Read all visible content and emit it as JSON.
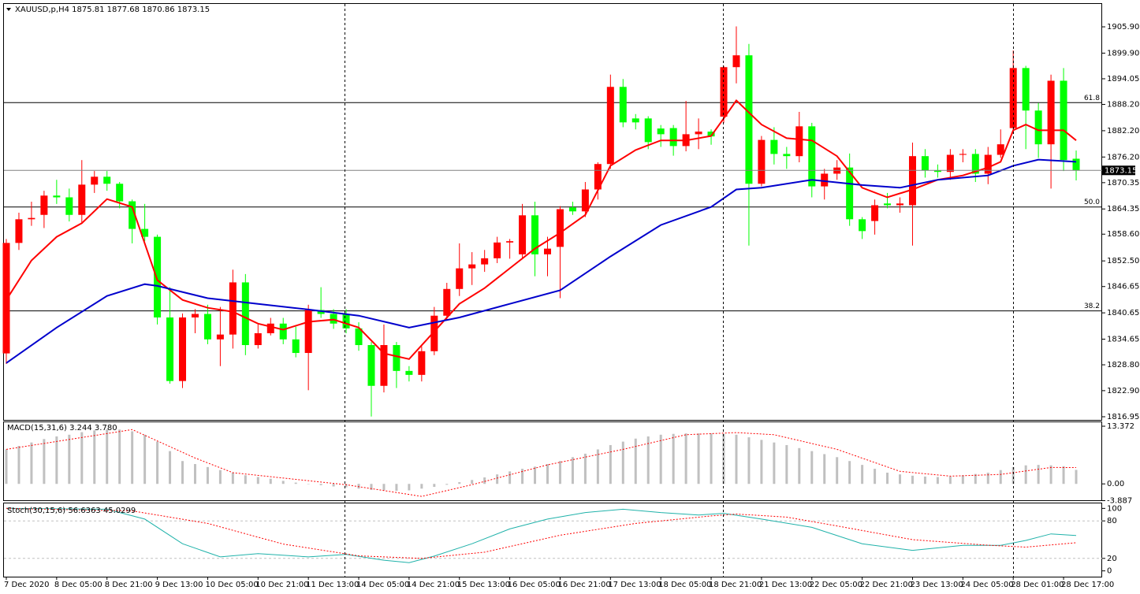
{
  "chart_data": [
    {
      "type": "candlestick",
      "title": "XAUUSD,p,H4  1875.81 1877.68 1870.86 1873.15",
      "open": [
        1831.4,
        1856.6,
        1862.0,
        1863.0,
        1867.4,
        1867.0,
        1863.0,
        1869.9,
        1871.7,
        1870.1,
        1866.1,
        1859.8,
        1858.0,
        1839.6,
        1825.1,
        1839.6,
        1840.4,
        1834.6,
        1835.7,
        1847.6,
        1833.3,
        1836.0,
        1838.2,
        1834.6,
        1831.5,
        1841.3,
        1840.4,
        1840.4,
        1837.1,
        1833.3,
        1824.0,
        1833.3,
        1827.4,
        1826.5,
        1831.9,
        1840.0,
        1846.1,
        1850.8,
        1851.7,
        1853.1,
        1856.7,
        1854.0,
        1862.9,
        1854.0,
        1855.7,
        1864.7,
        1863.8,
        1868.8,
        1874.6,
        1892.2,
        1885.0,
        1885.0,
        1882.7,
        1882.8,
        1878.7,
        1881.4,
        1882.0,
        1885.4,
        1896.7,
        1899.4,
        1870.1,
        1880.1,
        1876.9,
        1876.4,
        1883.2,
        1869.5,
        1872.4,
        1873.8,
        1862.0,
        1861.6,
        1865.6,
        1865.2,
        1865.2,
        1876.4,
        1873.1,
        1872.8,
        1876.7,
        1876.9,
        1872.4,
        1876.7,
        1882.8,
        1896.5,
        1886.8,
        1879.1,
        1893.6,
        1875.81
      ],
      "high": [
        1857.5,
        1863.5,
        1866.0,
        1868.5,
        1871.0,
        1869.0,
        1875.5,
        1873.0,
        1873.0,
        1870.5,
        1866.5,
        1865.5,
        1858.5,
        1846.5,
        1840.5,
        1841.5,
        1842.5,
        1842.0,
        1850.5,
        1849.5,
        1838.0,
        1839.5,
        1839.5,
        1837.5,
        1842.5,
        1846.5,
        1841.5,
        1841.5,
        1838.5,
        1834.0,
        1838.0,
        1834.0,
        1828.5,
        1833.0,
        1842.0,
        1847.5,
        1856.5,
        1854.5,
        1855.0,
        1858.0,
        1857.5,
        1865.5,
        1866.0,
        1858.0,
        1865.0,
        1866.0,
        1870.5,
        1875.0,
        1895.0,
        1894.0,
        1886.0,
        1885.5,
        1883.5,
        1883.5,
        1889.0,
        1885.0,
        1882.5,
        1897.0,
        1906.0,
        1902.0,
        1881.0,
        1883.0,
        1878.5,
        1886.5,
        1884.0,
        1873.5,
        1875.5,
        1877.0,
        1862.5,
        1866.5,
        1868.0,
        1867.0,
        1879.5,
        1878.0,
        1874.5,
        1878.0,
        1878.0,
        1878.0,
        1878.5,
        1882.5,
        1900.5,
        1897.0,
        1888.5,
        1895.0,
        1896.5,
        1877.68
      ],
      "low": [
        1829.0,
        1855.0,
        1860.5,
        1860.0,
        1865.5,
        1861.5,
        1861.0,
        1868.0,
        1868.5,
        1864.5,
        1856.5,
        1857.0,
        1838.0,
        1824.5,
        1823.5,
        1836.0,
        1833.5,
        1828.5,
        1832.5,
        1831.0,
        1832.5,
        1835.5,
        1833.5,
        1830.5,
        1823.0,
        1839.5,
        1837.0,
        1836.0,
        1832.0,
        1817.0,
        1822.5,
        1823.5,
        1825.0,
        1825.0,
        1831.0,
        1839.0,
        1844.5,
        1847.0,
        1850.0,
        1852.0,
        1853.0,
        1853.0,
        1849.0,
        1849.0,
        1844.0,
        1863.0,
        1862.5,
        1866.5,
        1873.5,
        1883.0,
        1882.5,
        1878.0,
        1878.5,
        1876.5,
        1877.5,
        1878.0,
        1879.0,
        1884.0,
        1893.0,
        1856.0,
        1869.5,
        1874.5,
        1873.5,
        1875.0,
        1867.0,
        1866.5,
        1871.0,
        1860.5,
        1857.5,
        1858.5,
        1864.5,
        1863.5,
        1856.0,
        1871.5,
        1871.5,
        1871.0,
        1875.0,
        1870.5,
        1870.0,
        1876.0,
        1881.5,
        1878.0,
        1876.0,
        1869.0,
        1873.0,
        1870.86
      ],
      "close": [
        1856.6,
        1862.0,
        1862.3,
        1867.4,
        1867.0,
        1863.0,
        1869.9,
        1871.7,
        1870.1,
        1866.1,
        1859.8,
        1858.0,
        1839.6,
        1825.1,
        1839.6,
        1840.4,
        1834.6,
        1835.7,
        1847.6,
        1833.3,
        1836.0,
        1838.2,
        1834.6,
        1831.5,
        1841.3,
        1840.4,
        1838.2,
        1837.1,
        1833.3,
        1824.0,
        1833.3,
        1827.4,
        1826.5,
        1831.9,
        1840.0,
        1846.1,
        1850.8,
        1851.7,
        1853.1,
        1856.7,
        1857.0,
        1862.9,
        1854.0,
        1855.3,
        1864.3,
        1863.8,
        1868.8,
        1874.6,
        1892.2,
        1884.1,
        1884.1,
        1879.6,
        1881.4,
        1878.7,
        1881.4,
        1882.0,
        1880.9,
        1896.7,
        1899.4,
        1870.1,
        1880.1,
        1876.9,
        1876.4,
        1883.2,
        1869.5,
        1872.4,
        1873.8,
        1862.0,
        1859.3,
        1865.2,
        1865.2,
        1865.6,
        1876.4,
        1873.1,
        1872.8,
        1876.7,
        1876.9,
        1872.4,
        1876.7,
        1879.1,
        1896.5,
        1886.8,
        1879.1,
        1893.6,
        1875.5,
        1873.15
      ],
      "up_color": "#ff0000",
      "down_color": "#00ff00",
      "lines": [
        {
          "color": "#ff0000",
          "x": [
            0,
            2,
            4,
            6,
            8,
            10,
            12,
            14,
            16,
            18,
            20,
            22,
            24,
            26,
            28,
            30,
            32,
            34,
            36,
            38,
            40,
            42,
            44,
            46,
            48,
            50,
            52,
            54,
            56,
            57,
            58,
            60,
            62,
            64,
            66,
            68,
            70,
            72,
            74,
            76,
            78,
            79,
            80,
            81,
            82,
            84,
            85
          ],
          "values": [
            1843.6,
            1852.6,
            1858.0,
            1861.1,
            1866.6,
            1864.8,
            1848.1,
            1843.6,
            1841.8,
            1840.9,
            1838.2,
            1836.8,
            1838.6,
            1839.1,
            1837.3,
            1831.4,
            1830.1,
            1836.4,
            1842.7,
            1846.3,
            1850.8,
            1855.3,
            1858.9,
            1863.0,
            1874.2,
            1877.8,
            1880.0,
            1880.0,
            1881.0,
            1885.0,
            1889.1,
            1883.6,
            1880.5,
            1880.0,
            1876.4,
            1869.2,
            1867.0,
            1868.8,
            1871.0,
            1872.0,
            1873.8,
            1875.1,
            1882.3,
            1883.6,
            1882.3,
            1882.3,
            1880.0
          ]
        },
        {
          "color": "#0000cc",
          "x": [
            0,
            4,
            8,
            11,
            12,
            16,
            20,
            24,
            28,
            32,
            36,
            40,
            44,
            48,
            52,
            56,
            58,
            60,
            64,
            68,
            71,
            74,
            78,
            80,
            82,
            85
          ],
          "values": [
            1829.2,
            1837.3,
            1844.5,
            1847.2,
            1846.8,
            1844.0,
            1842.7,
            1841.4,
            1840.0,
            1837.3,
            1839.6,
            1842.7,
            1845.8,
            1853.5,
            1860.7,
            1864.8,
            1868.8,
            1869.2,
            1871.0,
            1869.8,
            1869.2,
            1871.0,
            1872.0,
            1874.2,
            1875.6,
            1875.1
          ]
        }
      ],
      "levels": [
        {
          "value": 1888.6,
          "label": "61.8"
        },
        {
          "value": 1864.8,
          "label": "50.0"
        },
        {
          "value": 1841.1,
          "label": "38.2"
        }
      ],
      "last": 1873.15,
      "ylim": [
        1816.23,
        1911.12
      ],
      "yticks": [
        {
          "value": 1905.9,
          "label": "1905.90"
        },
        {
          "value": 1899.9,
          "label": "1899.90"
        },
        1894.05,
        {
          "value": 1888.2,
          "label": "1888.20"
        },
        {
          "value": 1882.2,
          "label": "1882.20"
        },
        {
          "value": 1876.2,
          "label": "1876.20"
        },
        1870.35,
        1864.35,
        {
          "value": 1858.6,
          "label": "1858.60"
        },
        {
          "value": 1852.5,
          "label": "1852.50"
        },
        1846.65,
        1840.65,
        1834.65,
        {
          "value": 1828.8,
          "label": "1828.80"
        },
        {
          "value": 1822.9,
          "label": "1822.90"
        },
        1816.95
      ],
      "xticks": [
        {
          "value": 0,
          "label": "7 Dec 2020"
        },
        {
          "value": 4,
          "label": "8 Dec 05:00"
        },
        {
          "value": 8,
          "label": "8 Dec 21:00"
        },
        {
          "value": 12,
          "label": "9 Dec 13:00"
        },
        {
          "value": 16,
          "label": "10 Dec 05:00"
        },
        {
          "value": 20,
          "label": "10 Dec 21:00"
        },
        {
          "value": 24,
          "label": "11 Dec 13:00"
        },
        {
          "value": 28,
          "label": "14 Dec 05:00"
        },
        {
          "value": 32,
          "label": "14 Dec 21:00"
        },
        {
          "value": 36,
          "label": "15 Dec 13:00"
        },
        {
          "value": 40,
          "label": "16 Dec 05:00"
        },
        {
          "value": 44,
          "label": "16 Dec 21:00"
        },
        {
          "value": 48,
          "label": "17 Dec 13:00"
        },
        {
          "value": 52,
          "label": "18 Dec 05:00"
        },
        {
          "value": 56,
          "label": "18 Dec 21:00"
        },
        {
          "value": 60,
          "label": "21 Dec 13:00"
        },
        {
          "value": 64,
          "label": "22 Dec 05:00"
        },
        {
          "value": 68,
          "label": "22 Dec 21:00"
        },
        {
          "value": 72,
          "label": "23 Dec 13:00"
        },
        {
          "value": 76,
          "label": "24 Dec 05:00"
        },
        {
          "value": 80,
          "label": "28 Dec 01:00"
        },
        {
          "value": 84,
          "label": "28 Dec 17:00"
        }
      ]
    },
    {
      "type": "macd",
      "title": "MACD(15,31,6) 3.244 3.780",
      "values": [
        8.0,
        8.8,
        9.6,
        10.4,
        11.0,
        11.4,
        12.0,
        12.4,
        12.6,
        12.6,
        12.2,
        11.4,
        9.8,
        7.6,
        5.3,
        4.6,
        3.9,
        3.2,
        2.6,
        2.0,
        1.6,
        1.2,
        0.7,
        0.3,
        0.0,
        -0.3,
        -0.6,
        -0.8,
        -1.1,
        -1.4,
        -1.5,
        -1.6,
        -1.5,
        -1.1,
        -0.7,
        -0.2,
        0.4,
        0.9,
        1.5,
        2.2,
        2.9,
        3.5,
        4.0,
        4.6,
        5.3,
        6.2,
        7.0,
        8.0,
        9.0,
        9.8,
        10.5,
        11.0,
        11.4,
        11.6,
        11.7,
        11.7,
        11.7,
        11.6,
        11.4,
        10.8,
        10.2,
        9.6,
        9.0,
        8.3,
        7.6,
        6.9,
        6.2,
        5.3,
        4.4,
        3.5,
        2.6,
        2.2,
        1.9,
        1.7,
        1.6,
        1.7,
        2.0,
        2.3,
        2.6,
        3.2,
        3.9,
        4.3,
        4.4,
        4.3,
        4.1,
        3.244
      ],
      "color": "#c0c0c0",
      "signal": {
        "color": "#ff0000",
        "x": [
          0,
          10,
          15,
          18,
          27,
          33,
          37,
          43,
          49,
          54,
          58,
          61,
          66,
          71,
          75,
          79,
          83,
          85
        ],
        "values": [
          8.0,
          12.6,
          6.0,
          2.6,
          -0.2,
          -2.9,
          -0.2,
          4.4,
          8.0,
          11.4,
          11.9,
          11.4,
          8.0,
          2.9,
          1.8,
          2.2,
          3.8,
          3.78
        ]
      },
      "ylim": [
        -3.887,
        14.29
      ],
      "yticks": [
        13.372,
        {
          "value": 0,
          "label": "0.00"
        },
        -3.887
      ]
    },
    {
      "type": "stochastic",
      "title": "Stoch(30,15,6) 56.6363 45.0299",
      "series": [
        {
          "color": "#20b2aa",
          "dash": false,
          "x": [
            0,
            8,
            11,
            14,
            17,
            20,
            24,
            27,
            30,
            32,
            34,
            37,
            40,
            43,
            46,
            49,
            52,
            55,
            57,
            60,
            64,
            68,
            72,
            76,
            79,
            81,
            83,
            85
          ],
          "values": [
            100,
            98.7,
            82.9,
            43.4,
            22.4,
            27.6,
            22.4,
            26.3,
            17.1,
            13.2,
            23.7,
            43.4,
            67.1,
            82.9,
            93.4,
            98.7,
            93.4,
            89.5,
            92.1,
            82.9,
            69.7,
            43.4,
            32.9,
            40.8,
            40.8,
            48.7,
            59.2,
            56.6363
          ]
        },
        {
          "color": "#ff0000",
          "dash": true,
          "x": [
            0,
            10,
            16,
            22,
            28,
            33,
            38,
            44,
            50,
            56,
            58,
            62,
            66,
            72,
            78,
            81,
            85
          ],
          "values": [
            100,
            96,
            76,
            43,
            24,
            20,
            30,
            57,
            76,
            88,
            91,
            86,
            72,
            50,
            41,
            38,
            45.0299
          ]
        }
      ],
      "ylim": [
        -8,
        108
      ],
      "yticks": [
        100,
        80,
        20,
        0
      ]
    }
  ]
}
